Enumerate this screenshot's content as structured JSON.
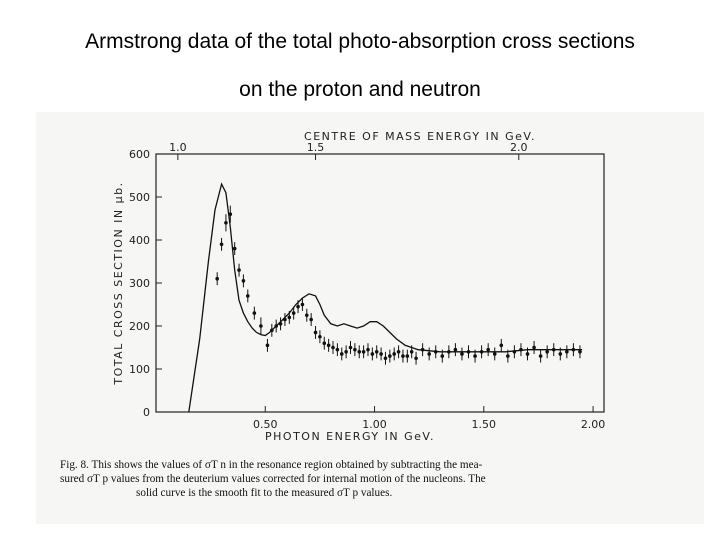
{
  "slide": {
    "title_line1": "Armstrong data of the total photo-absorption cross sections",
    "title_line2": "on the proton and neutron"
  },
  "figure": {
    "caption_line1": "Fig. 8. This shows the values of σT n in the resonance region obtained by subtracting the mea-",
    "caption_line2": "sured σT p values from the deuterium values corrected for internal motion of the nucleons. The",
    "caption_line3": "solid curve is the smooth fit to the measured σT p values."
  },
  "chart_data": {
    "type": "scatter",
    "xlabel": "PHOTON  ENERGY  IN GeV.",
    "ylabel": "TOTAL CROSS SECTION IN μb.",
    "top_axis_label": "CENTRE OF MASS ENERGY  IN GeV.",
    "xlim": [
      0,
      2.05
    ],
    "ylim": [
      0,
      600
    ],
    "x_ticks": [
      0.5,
      1.0,
      1.5,
      2.0
    ],
    "x_tick_labels": [
      "0.50",
      "1.00",
      "1.50",
      "2.00"
    ],
    "y_ticks": [
      0,
      100,
      200,
      300,
      400,
      500,
      600
    ],
    "y_tick_labels": [
      "0",
      "100",
      "200",
      "300",
      "400",
      "500",
      "600"
    ],
    "top_ticks_photon_energy": [
      0.1,
      0.73,
      1.66
    ],
    "top_tick_labels": [
      "1.0",
      "1.5",
      "2.0"
    ],
    "grid": false,
    "series": [
      {
        "kind": "points_with_error_bars",
        "x": [
          0.28,
          0.3,
          0.32,
          0.34,
          0.36,
          0.38,
          0.4,
          0.42,
          0.45,
          0.48,
          0.51,
          0.53,
          0.55,
          0.57,
          0.59,
          0.61,
          0.63,
          0.65,
          0.67,
          0.69,
          0.71,
          0.73,
          0.75,
          0.77,
          0.79,
          0.81,
          0.83,
          0.85,
          0.87,
          0.89,
          0.91,
          0.93,
          0.95,
          0.97,
          0.99,
          1.01,
          1.03,
          1.05,
          1.07,
          1.09,
          1.11,
          1.13,
          1.15,
          1.17,
          1.19,
          1.22,
          1.25,
          1.28,
          1.31,
          1.34,
          1.37,
          1.4,
          1.43,
          1.46,
          1.49,
          1.52,
          1.55,
          1.58,
          1.61,
          1.64,
          1.67,
          1.7,
          1.73,
          1.76,
          1.79,
          1.82,
          1.85,
          1.88,
          1.91,
          1.94
        ],
        "y": [
          310,
          390,
          440,
          460,
          380,
          330,
          305,
          270,
          230,
          200,
          155,
          190,
          200,
          205,
          215,
          220,
          230,
          245,
          250,
          225,
          215,
          185,
          175,
          160,
          155,
          150,
          145,
          135,
          140,
          150,
          145,
          140,
          140,
          145,
          135,
          140,
          135,
          125,
          130,
          135,
          140,
          130,
          130,
          140,
          125,
          145,
          135,
          140,
          130,
          140,
          145,
          135,
          140,
          130,
          140,
          145,
          135,
          155,
          130,
          140,
          145,
          135,
          150,
          130,
          140,
          145,
          135,
          140,
          145,
          140
        ],
        "err": [
          15,
          15,
          20,
          20,
          15,
          15,
          15,
          15,
          15,
          20,
          15,
          15,
          15,
          15,
          15,
          15,
          15,
          15,
          15,
          15,
          15,
          15,
          15,
          15,
          15,
          15,
          15,
          15,
          15,
          15,
          15,
          15,
          15,
          15,
          15,
          15,
          15,
          15,
          15,
          15,
          15,
          15,
          15,
          15,
          15,
          15,
          15,
          15,
          15,
          15,
          15,
          15,
          15,
          15,
          15,
          15,
          15,
          15,
          15,
          15,
          15,
          15,
          15,
          15,
          15,
          15,
          15,
          15,
          15,
          15
        ]
      },
      {
        "kind": "smooth_fit_curve",
        "x": [
          0.15,
          0.2,
          0.24,
          0.27,
          0.3,
          0.32,
          0.34,
          0.36,
          0.38,
          0.4,
          0.42,
          0.44,
          0.46,
          0.48,
          0.5,
          0.52,
          0.55,
          0.58,
          0.61,
          0.64,
          0.67,
          0.7,
          0.73,
          0.75,
          0.77,
          0.8,
          0.83,
          0.86,
          0.89,
          0.92,
          0.95,
          0.98,
          1.01,
          1.04,
          1.07,
          1.1,
          1.14,
          1.2,
          1.3,
          1.4,
          1.5,
          1.6,
          1.7,
          1.8,
          1.9,
          1.95
        ],
        "y": [
          0,
          170,
          350,
          470,
          530,
          510,
          430,
          330,
          260,
          230,
          210,
          195,
          185,
          180,
          178,
          185,
          200,
          215,
          230,
          250,
          265,
          275,
          270,
          250,
          225,
          205,
          200,
          205,
          200,
          195,
          200,
          210,
          210,
          200,
          185,
          170,
          155,
          145,
          140,
          140,
          140,
          140,
          145,
          145,
          145,
          145
        ]
      }
    ]
  }
}
